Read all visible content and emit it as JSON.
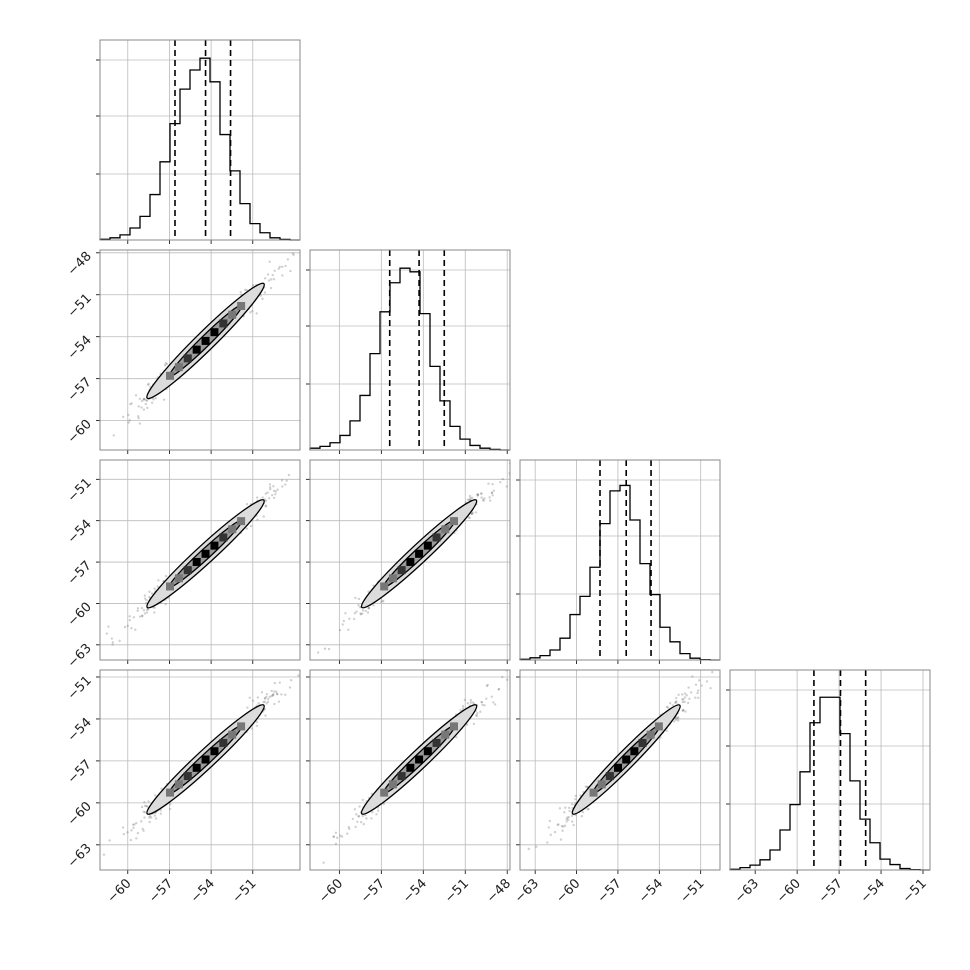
{
  "figure": {
    "background": "#ffffff",
    "axes_color": "#888888",
    "grid_color": "#bbbbbb",
    "line_color": "#000000",
    "scatter_color": "#777777",
    "contour_fill": "#dcdcdc"
  },
  "chart_data": {
    "type": "corner",
    "n_params": 4,
    "grid": true,
    "quantiles": [
      0.16,
      0.5,
      0.84
    ],
    "params": [
      {
        "median": -54.4,
        "q16": -56.6,
        "q84": -52.6,
        "range": [
          -62.0,
          -47.6
        ]
      },
      {
        "median": -54.3,
        "q16": -56.4,
        "q84": -52.5,
        "range": [
          -62.1,
          -47.8
        ]
      },
      {
        "median": -56.4,
        "q16": -58.3,
        "q84": -54.6,
        "range": [
          -64.1,
          -49.6
        ]
      },
      {
        "median": -56.9,
        "q16": -58.8,
        "q84": -55.1,
        "range": [
          -64.8,
          -50.5
        ]
      }
    ],
    "tick_labels": {
      "x": [
        [
          "−60",
          "−57",
          "−54",
          "−51"
        ],
        [
          "−60",
          "−57",
          "−54",
          "−51",
          "−48"
        ],
        [
          "−63",
          "−60",
          "−57",
          "−54",
          "−51"
        ],
        [
          "−63",
          "−60",
          "−57",
          "−54",
          "−51"
        ]
      ],
      "y": [
        [],
        [
          "−48",
          "−51",
          "−54",
          "−57",
          "−60"
        ],
        [
          "−51",
          "−54",
          "−57",
          "−60",
          "−63"
        ],
        [
          "−51",
          "−54",
          "−57",
          "−60",
          "−63"
        ]
      ]
    },
    "tick_values": {
      "x": [
        [
          -60,
          -57,
          -54,
          -51
        ],
        [
          -60,
          -57,
          -54,
          -51,
          -48
        ],
        [
          -63,
          -60,
          -57,
          -54,
          -51
        ],
        [
          -63,
          -60,
          -57,
          -54,
          -51
        ]
      ],
      "y": [
        [],
        [
          -48,
          -51,
          -54,
          -57,
          -60
        ],
        [
          -51,
          -54,
          -57,
          -60,
          -63
        ],
        [
          -51,
          -54,
          -57,
          -60,
          -63
        ]
      ]
    },
    "histograms": [
      [
        0.004,
        0.012,
        0.028,
        0.066,
        0.13,
        0.25,
        0.43,
        0.64,
        0.83,
        0.935,
        1.0,
        0.87,
        0.58,
        0.38,
        0.2,
        0.09,
        0.04,
        0.012,
        0.003,
        0.0
      ],
      [
        0.01,
        0.02,
        0.04,
        0.08,
        0.16,
        0.3,
        0.53,
        0.76,
        0.92,
        1.0,
        0.98,
        0.75,
        0.46,
        0.27,
        0.13,
        0.06,
        0.025,
        0.01,
        0.003,
        0.0
      ],
      [
        0.004,
        0.012,
        0.024,
        0.055,
        0.12,
        0.25,
        0.35,
        0.51,
        0.75,
        0.93,
        0.96,
        0.77,
        0.53,
        0.36,
        0.18,
        0.1,
        0.035,
        0.01,
        0.002,
        0.0
      ],
      [
        0.004,
        0.013,
        0.027,
        0.056,
        0.11,
        0.22,
        0.36,
        0.54,
        0.81,
        0.95,
        0.95,
        0.75,
        0.49,
        0.28,
        0.15,
        0.06,
        0.03,
        0.008,
        0.002,
        0.0
      ]
    ],
    "hist_ymax": 1.1,
    "hist_grid_fractions": [
      0.33,
      0.62,
      0.9
    ],
    "correlation": 0.98
  }
}
